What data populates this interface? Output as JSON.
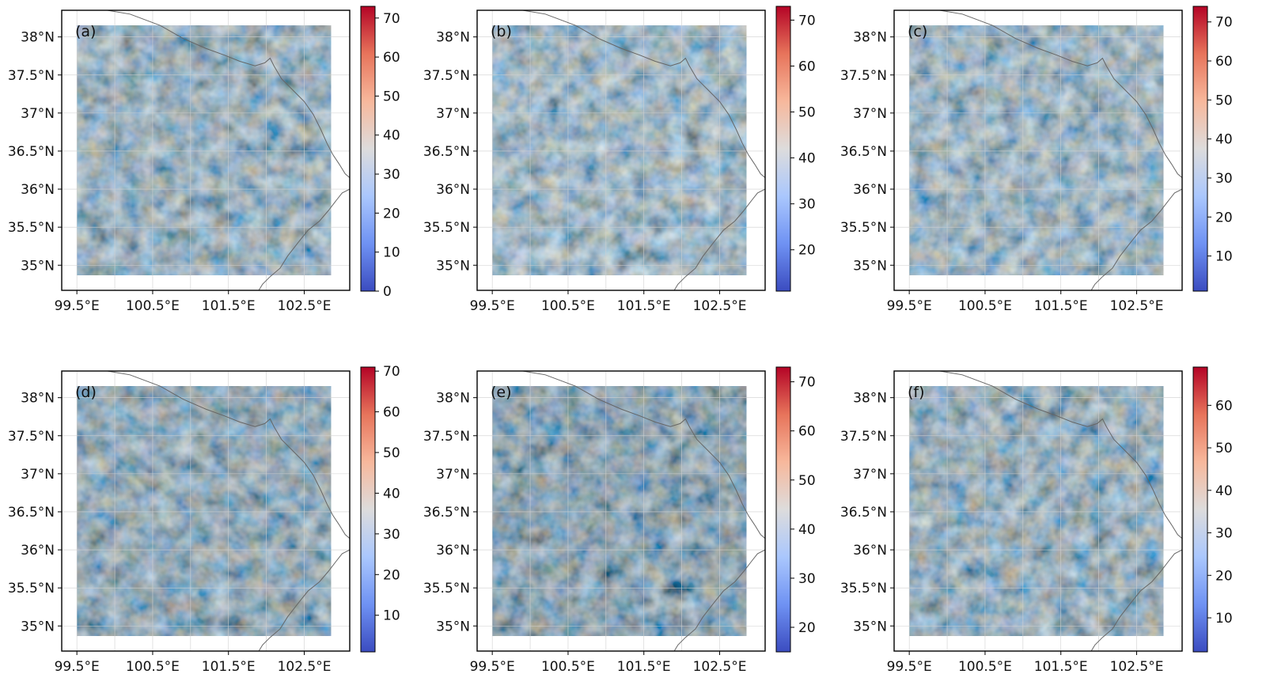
{
  "figure": {
    "colormap": "coolwarm",
    "colormap_stops": [
      "#3b4cc0",
      "#6f92f3",
      "#aac7fd",
      "#dddcdc",
      "#f7b89c",
      "#e7745b",
      "#b40426"
    ],
    "x_ticks": [
      "99.5°E",
      "100.5°E",
      "101.5°E",
      "102.5°E"
    ],
    "x_tick_values": [
      99.5,
      100.5,
      101.5,
      102.5
    ],
    "y_ticks": [
      "35°N",
      "35.5°N",
      "36°N",
      "36.5°N",
      "37°N",
      "37.5°N",
      "38°N"
    ],
    "y_tick_values": [
      35.0,
      35.5,
      36.0,
      36.5,
      37.0,
      37.5,
      38.0
    ],
    "lon_range": [
      99.3,
      103.1
    ],
    "lat_range": [
      34.67,
      38.35
    ],
    "data_extent": {
      "lon": [
        99.5,
        102.85
      ],
      "lat": [
        34.87,
        38.15
      ]
    }
  },
  "chart_data": [
    {
      "type": "heatmap",
      "label": "(a)",
      "colorbar": {
        "range": [
          0,
          73
        ],
        "ticks": [
          "0",
          "10",
          "20",
          "30",
          "40",
          "50",
          "60",
          "70"
        ],
        "tick_values": [
          0,
          10,
          20,
          30,
          40,
          50,
          60,
          70
        ]
      }
    },
    {
      "type": "heatmap",
      "label": "(b)",
      "colorbar": {
        "range": [
          11,
          73
        ],
        "ticks": [
          "20",
          "30",
          "40",
          "50",
          "60",
          "70"
        ],
        "tick_values": [
          20,
          30,
          40,
          50,
          60,
          70
        ]
      }
    },
    {
      "type": "heatmap",
      "label": "(c)",
      "colorbar": {
        "range": [
          1,
          74
        ],
        "ticks": [
          "10",
          "20",
          "30",
          "40",
          "50",
          "60",
          "70"
        ],
        "tick_values": [
          10,
          20,
          30,
          40,
          50,
          60,
          70
        ]
      }
    },
    {
      "type": "heatmap",
      "label": "(d)",
      "colorbar": {
        "range": [
          1,
          71
        ],
        "ticks": [
          "10",
          "20",
          "30",
          "40",
          "50",
          "60",
          "70"
        ],
        "tick_values": [
          10,
          20,
          30,
          40,
          50,
          60,
          70
        ]
      }
    },
    {
      "type": "heatmap",
      "label": "(e)",
      "colorbar": {
        "range": [
          15,
          73
        ],
        "ticks": [
          "20",
          "30",
          "40",
          "50",
          "60",
          "70"
        ],
        "tick_values": [
          20,
          30,
          40,
          50,
          60,
          70
        ]
      }
    },
    {
      "type": "heatmap",
      "label": "(f)",
      "colorbar": {
        "range": [
          2,
          69
        ],
        "ticks": [
          "10",
          "20",
          "30",
          "40",
          "50",
          "60"
        ],
        "tick_values": [
          10,
          20,
          30,
          40,
          50,
          60
        ]
      }
    }
  ]
}
